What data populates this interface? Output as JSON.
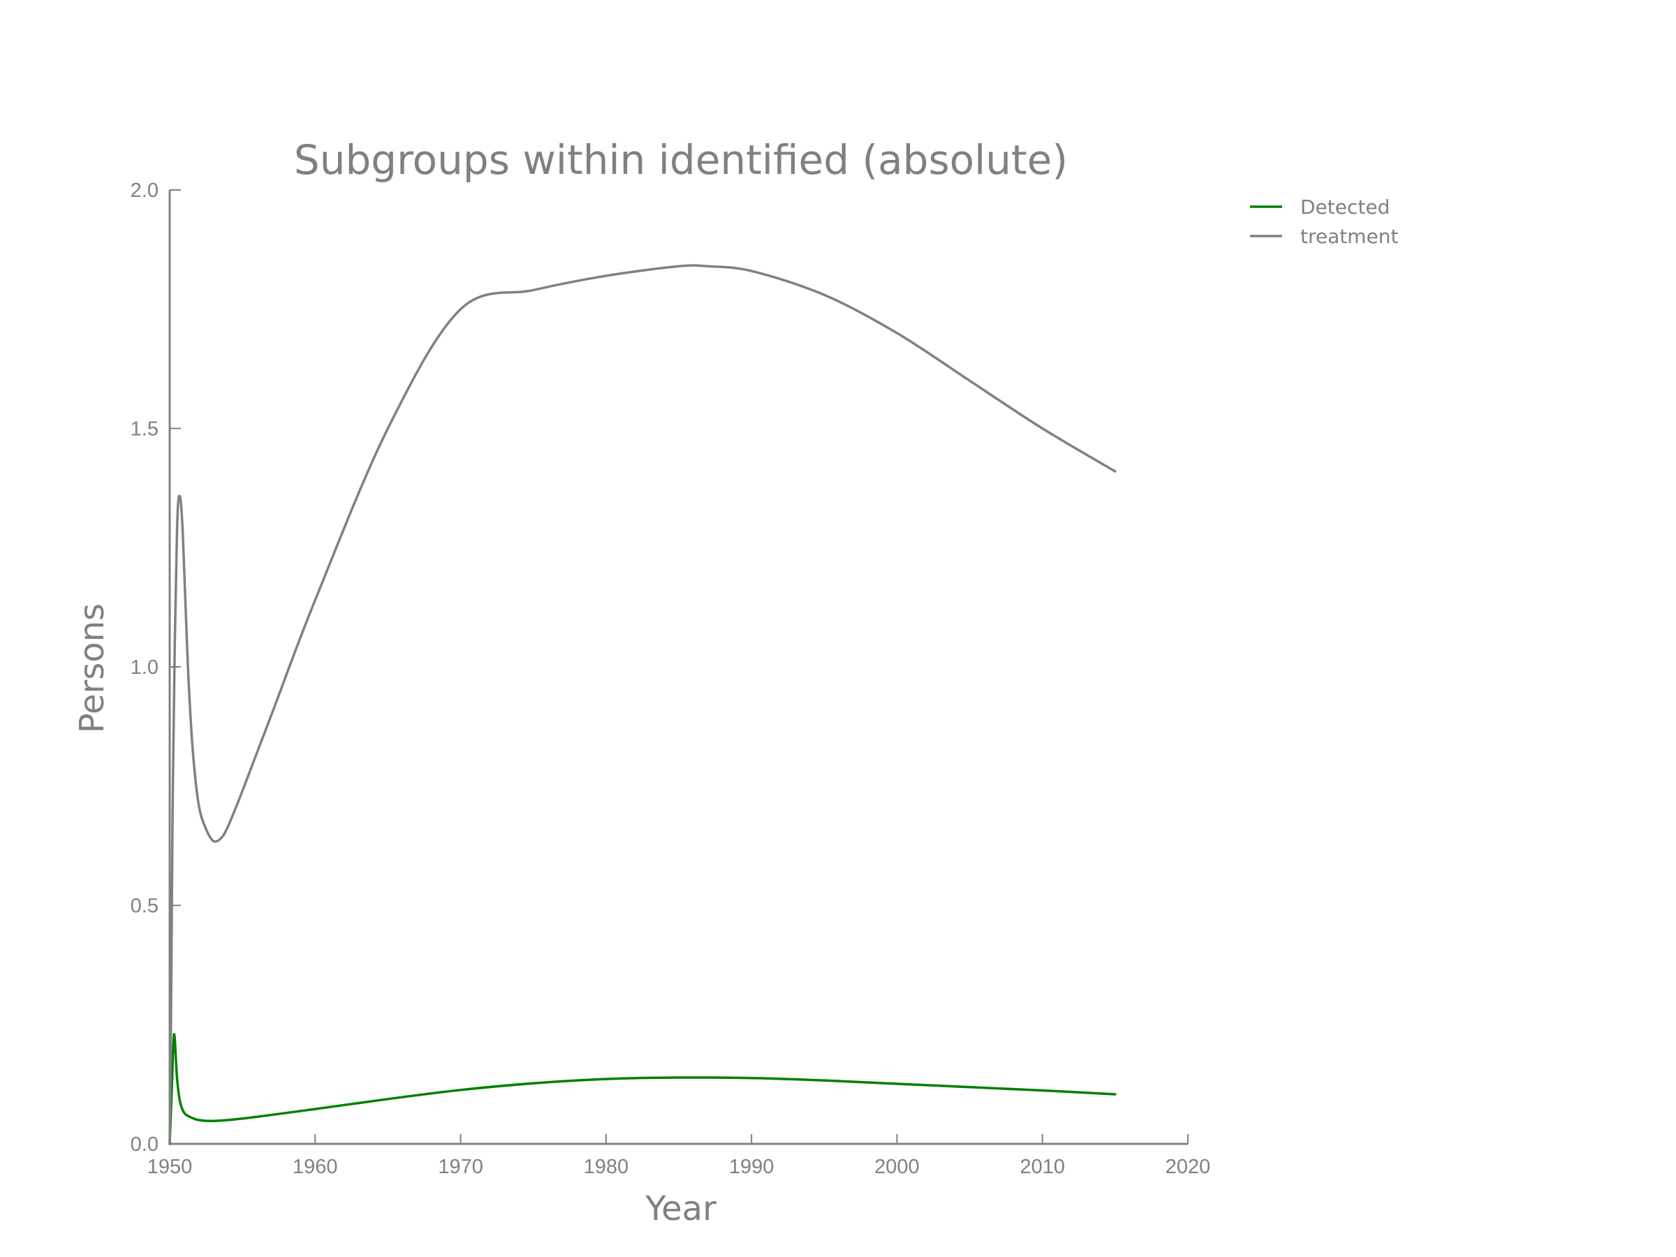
{
  "chart_data": {
    "type": "line",
    "title": "Subgroups within identified (absolute)",
    "xlabel": "Year",
    "ylabel": "Persons",
    "xlim": [
      1950,
      2020
    ],
    "ylim": [
      0.0,
      2.0
    ],
    "xticks": [
      1950,
      1960,
      1970,
      1980,
      1990,
      2000,
      2010,
      2020
    ],
    "xtick_labels": [
      "1950",
      "1960",
      "1970",
      "1980",
      "1990",
      "2000",
      "2010",
      "2020"
    ],
    "yticks": [
      0.0,
      0.5,
      1.0,
      1.5,
      2.0
    ],
    "ytick_labels": [
      "0.0",
      "0.5",
      "1.0",
      "1.5",
      "2.0"
    ],
    "grid": false,
    "legend_position": "outside-top-right",
    "series": [
      {
        "name": "Detected",
        "color": "#008000",
        "x": [
          1950.0,
          1950.15,
          1950.3,
          1950.5,
          1950.7,
          1951.0,
          1951.5,
          1952.0,
          1953.0,
          1955.0,
          1960.0,
          1965.0,
          1970.0,
          1975.0,
          1980.0,
          1985.0,
          1990.0,
          1995.0,
          2000.0,
          2005.0,
          2010.0,
          2015.0
        ],
        "y": [
          0.0,
          0.12,
          0.23,
          0.14,
          0.09,
          0.065,
          0.055,
          0.05,
          0.048,
          0.053,
          0.073,
          0.094,
          0.113,
          0.127,
          0.136,
          0.139,
          0.138,
          0.133,
          0.126,
          0.119,
          0.112,
          0.104
        ]
      },
      {
        "name": "treatment",
        "color": "#808080",
        "x": [
          1950.0,
          1950.1,
          1950.2,
          1950.35,
          1950.5,
          1950.6,
          1950.75,
          1950.9,
          1951.1,
          1951.3,
          1951.6,
          1952.0,
          1952.5,
          1953.0,
          1953.5,
          1954.0,
          1955.0,
          1957.0,
          1960.0,
          1965.0,
          1970.0,
          1975.0,
          1980.0,
          1985.0,
          1987.0,
          1990.0,
          1995.0,
          2000.0,
          2005.0,
          2010.0,
          2015.0
        ],
        "y": [
          0.0,
          0.3,
          0.7,
          1.05,
          1.28,
          1.35,
          1.35,
          1.28,
          1.12,
          0.97,
          0.82,
          0.71,
          0.66,
          0.635,
          0.64,
          0.665,
          0.74,
          0.9,
          1.14,
          1.5,
          1.75,
          1.79,
          1.82,
          1.84,
          1.84,
          1.83,
          1.78,
          1.7,
          1.6,
          1.5,
          1.41
        ]
      }
    ]
  }
}
